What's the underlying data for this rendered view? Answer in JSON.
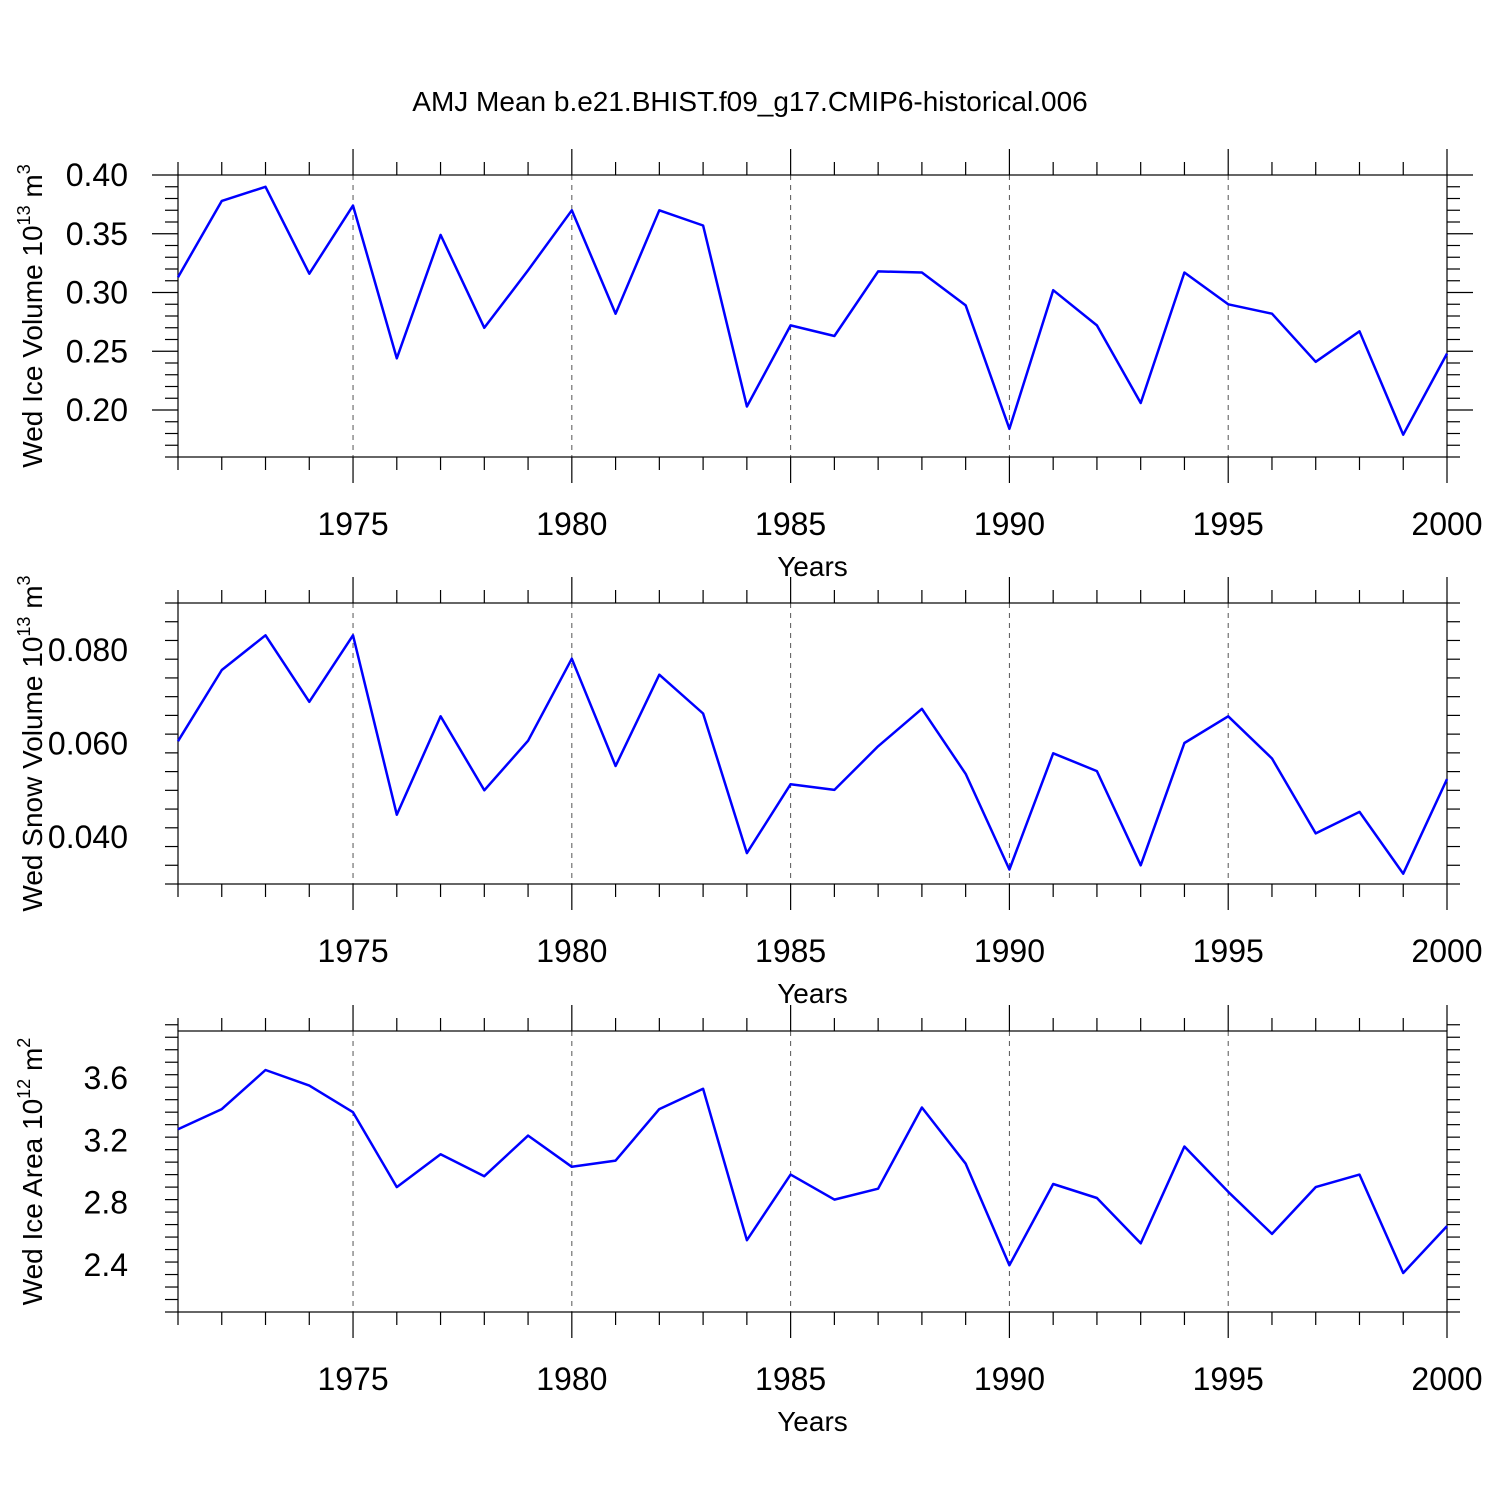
{
  "title": "AMJ Mean b.e21.BHIST.f09_g17.CMIP6-historical.006",
  "chart_data": [
    {
      "type": "line",
      "title": "AMJ Mean b.e21.BHIST.f09_g17.CMIP6-historical.006",
      "xlabel": "Years",
      "ylabel": "Wed Ice Volume 10",
      "ylabel_exp": "13",
      "ylabel_unit": "m",
      "ylabel_unit_exp": "3",
      "xlim": [
        1971,
        2000
      ],
      "ylim": [
        0.16,
        0.4
      ],
      "yticks": [
        0.2,
        0.25,
        0.3,
        0.35,
        0.4
      ],
      "ytick_labels": [
        "0.20",
        "0.25",
        "0.30",
        "0.35",
        "0.40"
      ],
      "xticks": [
        1975,
        1980,
        1985,
        1990,
        1995,
        2000
      ],
      "xtick_labels": [
        "1975",
        "1980",
        "1985",
        "1990",
        "1995",
        "2000"
      ],
      "series": [
        {
          "name": "Wed Ice Volume",
          "color": "#0000ff",
          "x": [
            1971,
            1972,
            1973,
            1974,
            1975,
            1976,
            1977,
            1978,
            1979,
            1980,
            1981,
            1982,
            1983,
            1984,
            1985,
            1986,
            1987,
            1988,
            1989,
            1990,
            1991,
            1992,
            1993,
            1994,
            1995,
            1996,
            1997,
            1998,
            1999,
            2000
          ],
          "values": [
            0.313,
            0.378,
            0.39,
            0.316,
            0.374,
            0.244,
            0.349,
            0.27,
            0.319,
            0.37,
            0.282,
            0.37,
            0.357,
            0.203,
            0.272,
            0.263,
            0.318,
            0.317,
            0.289,
            0.184,
            0.302,
            0.272,
            0.206,
            0.317,
            0.29,
            0.282,
            0.241,
            0.267,
            0.179,
            0.248
          ]
        }
      ]
    },
    {
      "type": "line",
      "xlabel": "Years",
      "ylabel": "Wed Snow Volume 10",
      "ylabel_exp": "13",
      "ylabel_unit": "m",
      "ylabel_unit_exp": "3",
      "xlim": [
        1971,
        2000
      ],
      "ylim": [
        0.03,
        0.09
      ],
      "yticks": [
        0.04,
        0.06,
        0.08
      ],
      "ytick_labels": [
        "0.040",
        "0.060",
        "0.080"
      ],
      "xticks": [
        1975,
        1980,
        1985,
        1990,
        1995,
        2000
      ],
      "xtick_labels": [
        "1975",
        "1980",
        "1985",
        "1990",
        "1995",
        "2000"
      ],
      "series": [
        {
          "name": "Wed Snow Volume",
          "color": "#0000ff",
          "x": [
            1971,
            1972,
            1973,
            1974,
            1975,
            1976,
            1977,
            1978,
            1979,
            1980,
            1981,
            1982,
            1983,
            1984,
            1985,
            1986,
            1987,
            1988,
            1989,
            1990,
            1991,
            1992,
            1993,
            1994,
            1995,
            1996,
            1997,
            1998,
            1999,
            2000
          ],
          "values": [
            0.0605,
            0.0757,
            0.0831,
            0.0689,
            0.0831,
            0.0448,
            0.0658,
            0.05,
            0.0606,
            0.0781,
            0.0552,
            0.0747,
            0.0664,
            0.0366,
            0.0513,
            0.0501,
            0.0594,
            0.0674,
            0.0535,
            0.0331,
            0.0579,
            0.0541,
            0.034,
            0.0601,
            0.0658,
            0.0568,
            0.0408,
            0.0454,
            0.0322,
            0.0524
          ]
        }
      ]
    },
    {
      "type": "line",
      "xlabel": "Years",
      "ylabel": "Wed Ice Area 10",
      "ylabel_exp": "12",
      "ylabel_unit": "m",
      "ylabel_unit_exp": "2",
      "xlim": [
        1971,
        2000
      ],
      "ylim": [
        2.1,
        3.9
      ],
      "yticks": [
        2.4,
        2.8,
        3.2,
        3.6
      ],
      "ytick_labels": [
        "2.4",
        "2.8",
        "3.2",
        "3.6"
      ],
      "xticks": [
        1975,
        1980,
        1985,
        1990,
        1995,
        2000
      ],
      "xtick_labels": [
        "1975",
        "1980",
        "1985",
        "1990",
        "1995",
        "2000"
      ],
      "series": [
        {
          "name": "Wed Ice Area",
          "color": "#0000ff",
          "x": [
            1971,
            1972,
            1973,
            1974,
            1975,
            1976,
            1977,
            1978,
            1979,
            1980,
            1981,
            1982,
            1983,
            1984,
            1985,
            1986,
            1987,
            1988,
            1989,
            1990,
            1991,
            1992,
            1993,
            1994,
            1995,
            1996,
            1997,
            1998,
            1999,
            2000
          ],
          "values": [
            3.27,
            3.4,
            3.65,
            3.55,
            3.38,
            2.9,
            3.11,
            2.97,
            3.23,
            3.03,
            3.07,
            3.4,
            3.53,
            2.56,
            2.98,
            2.82,
            2.89,
            3.41,
            3.05,
            2.4,
            2.92,
            2.83,
            2.54,
            3.16,
            2.87,
            2.6,
            2.9,
            2.98,
            2.35,
            2.65
          ]
        }
      ]
    }
  ]
}
